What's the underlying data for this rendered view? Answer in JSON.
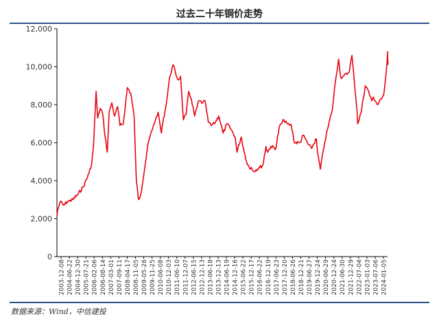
{
  "title": "过去二十年铜价走势",
  "source": "数据来源：Wind，中信建投",
  "colors": {
    "line": "#e8000b",
    "rule": "#2b4f8a",
    "axis": "#000000",
    "text": "#333333"
  },
  "chart_data": {
    "type": "line",
    "title": "过去二十年铜价走势",
    "xlabel": "",
    "ylabel": "",
    "ylim": [
      0,
      12000
    ],
    "yticks": [
      "0",
      "2,000",
      "4,000",
      "6,000",
      "8,000",
      "10,000",
      "12,000"
    ],
    "grid": false,
    "legend": "none",
    "xrange": [
      "2003-12-08",
      "2024-05-20"
    ],
    "xtick_labels": [
      "2003-12-08",
      "2004-06-22",
      "2004-12-30",
      "2005-07-21",
      "2006-02-06",
      "2006-08-14",
      "2007-03-01",
      "2007-09-11",
      "2008-04-17",
      "2008-11-05",
      "2009-05-26",
      "2009-11-25",
      "2010-06-08",
      "2010-12-03",
      "2011-06-10",
      "2011-12-07",
      "2012-06-15",
      "2012-12-13",
      "2013-06-18",
      "2013-12-13",
      "2014-06-19",
      "2014-12-16",
      "2015-06-22",
      "2015-12-17",
      "2016-06-22",
      "2016-12-19",
      "2017-06-23",
      "2017-12-20",
      "2018-06-26",
      "2018-12-21",
      "2019-06-27",
      "2019-12-24",
      "2020-06-29",
      "2020-12-24",
      "2021-06-30",
      "2021-12-29",
      "2022-07-04",
      "2023-01-03",
      "2023-07-06",
      "2024-01-05"
    ],
    "series": [
      {
        "x": [
          "2003-12-08",
          "2003-12-20",
          "2004-02-20",
          "2004-05-10",
          "2004-08-01",
          "2004-12-01",
          "2005-04-01",
          "2005-08-01",
          "2005-12-01",
          "2006-02-01",
          "2006-03-15",
          "2006-05-11",
          "2006-06-15",
          "2006-08-14",
          "2006-10-01",
          "2006-12-01",
          "2007-01-20",
          "2007-03-01",
          "2007-05-01",
          "2007-07-01",
          "2007-09-11",
          "2007-11-01",
          "2008-01-15",
          "2008-04-17",
          "2008-07-03",
          "2008-09-15",
          "2008-11-05",
          "2008-12-24",
          "2009-02-15",
          "2009-05-26",
          "2009-08-01",
          "2009-11-25",
          "2010-01-10",
          "2010-03-10",
          "2010-05-25",
          "2010-06-08",
          "2010-09-01",
          "2010-12-03",
          "2011-02-14",
          "2011-04-15",
          "2011-06-10",
          "2011-08-01",
          "2011-10-04",
          "2011-12-07",
          "2012-02-01",
          "2012-04-01",
          "2012-06-15",
          "2012-09-14",
          "2012-12-13",
          "2013-02-01",
          "2013-04-18",
          "2013-06-18",
          "2013-09-01",
          "2013-12-13",
          "2014-03-20",
          "2014-06-19",
          "2014-09-15",
          "2014-12-16",
          "2015-01-26",
          "2015-05-01",
          "2015-06-22",
          "2015-09-01",
          "2015-11-20",
          "2015-12-17",
          "2016-02-01",
          "2016-06-22",
          "2016-09-01",
          "2016-11-11",
          "2016-12-19",
          "2017-03-01",
          "2017-06-23",
          "2017-09-05",
          "2017-12-20",
          "2018-03-01",
          "2018-06-08",
          "2018-08-15",
          "2018-12-21",
          "2019-03-01",
          "2019-06-27",
          "2019-09-03",
          "2019-12-24",
          "2020-01-20",
          "2020-03-23",
          "2020-06-29",
          "2020-09-01",
          "2020-12-24",
          "2021-02-25",
          "2021-05-10",
          "2021-06-30",
          "2021-09-01",
          "2021-12-29",
          "2022-03-07",
          "2022-05-01",
          "2022-07-04",
          "2022-07-15",
          "2022-10-01",
          "2023-01-03",
          "2023-03-01",
          "2023-05-30",
          "2023-07-06",
          "2023-10-05",
          "2024-01-05",
          "2024-02-20",
          "2024-04-01",
          "2024-05-10",
          "2024-05-20",
          "2024-05-28"
        ],
        "y": [
          2100,
          2400,
          2900,
          2700,
          2900,
          3000,
          3300,
          3700,
          4400,
          4900,
          5900,
          8700,
          7300,
          7800,
          7600,
          6300,
          5500,
          7600,
          8100,
          7400,
          7900,
          6900,
          7000,
          8900,
          8600,
          7400,
          4000,
          3000,
          3300,
          4900,
          6000,
          6900,
          7200,
          7600,
          6500,
          6800,
          7900,
          9500,
          10100,
          9600,
          9300,
          9500,
          7200,
          7500,
          8700,
          8300,
          7400,
          8200,
          8100,
          8200,
          7100,
          6900,
          7000,
          7400,
          6500,
          7000,
          6700,
          6300,
          5500,
          6300,
          5700,
          5000,
          4600,
          4700,
          4500,
          4700,
          4800,
          5800,
          5500,
          5800,
          5700,
          6800,
          7200,
          7000,
          6900,
          6000,
          6000,
          6400,
          5900,
          5700,
          6200,
          5500,
          4600,
          6000,
          6700,
          7800,
          9200,
          10400,
          9400,
          9500,
          9700,
          10600,
          9200,
          7600,
          7000,
          7600,
          9000,
          8800,
          8200,
          8400,
          8000,
          8300,
          8500,
          9300,
          10300,
          10800,
          10100
        ]
      }
    ]
  }
}
